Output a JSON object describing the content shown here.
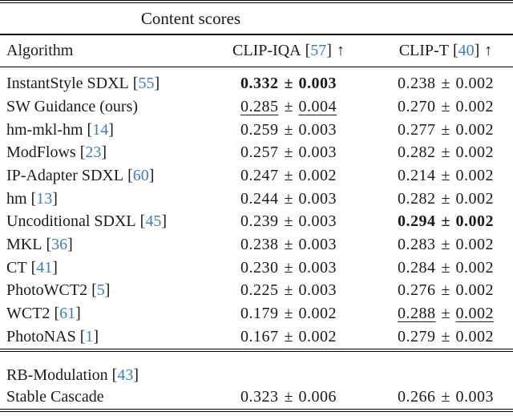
{
  "table": {
    "title": "Content scores",
    "header": {
      "algorithm": "Algorithm",
      "clip_iqa": {
        "name": "CLIP-IQA",
        "cite_l": "[",
        "cite": "57",
        "cite_r": "]",
        "arrow": "↑"
      },
      "clip_t": {
        "name": "CLIP-T",
        "cite_l": "[",
        "cite": "40",
        "cite_r": "]",
        "arrow": "↑"
      }
    },
    "rows": [
      {
        "name": "InstantStyle SDXL",
        "cite_l": "[",
        "cite": "55",
        "cite_r": "]",
        "iqa": {
          "v": "0.332",
          "pm": "±",
          "e": "0.003"
        },
        "iqa_style": "bold",
        "ct": {
          "v": "0.238",
          "pm": "±",
          "e": "0.002"
        },
        "ct_style": ""
      },
      {
        "name": "SW Guidance (ours)",
        "cite_l": "",
        "cite": "",
        "cite_r": "",
        "iqa": {
          "v": "0.285",
          "pm": "±",
          "e": "0.004"
        },
        "iqa_style": "underline",
        "ct": {
          "v": "0.270",
          "pm": "±",
          "e": "0.002"
        },
        "ct_style": ""
      },
      {
        "name": "hm-mkl-hm",
        "cite_l": "[",
        "cite": "14",
        "cite_r": "]",
        "iqa": {
          "v": "0.259",
          "pm": "±",
          "e": "0.003"
        },
        "iqa_style": "",
        "ct": {
          "v": "0.277",
          "pm": "±",
          "e": "0.002"
        },
        "ct_style": ""
      },
      {
        "name": "ModFlows",
        "cite_l": "[",
        "cite": "23",
        "cite_r": "]",
        "iqa": {
          "v": "0.257",
          "pm": "±",
          "e": "0.003"
        },
        "iqa_style": "",
        "ct": {
          "v": "0.282",
          "pm": "±",
          "e": "0.002"
        },
        "ct_style": ""
      },
      {
        "name": "IP-Adapter SDXL",
        "cite_l": "[",
        "cite": "60",
        "cite_r": "]",
        "iqa": {
          "v": "0.247",
          "pm": "±",
          "e": "0.002"
        },
        "iqa_style": "",
        "ct": {
          "v": "0.214",
          "pm": "±",
          "e": "0.002"
        },
        "ct_style": ""
      },
      {
        "name": "hm",
        "cite_l": "[",
        "cite": "13",
        "cite_r": "]",
        "iqa": {
          "v": "0.244",
          "pm": "±",
          "e": "0.003"
        },
        "iqa_style": "",
        "ct": {
          "v": "0.282",
          "pm": "±",
          "e": "0.002"
        },
        "ct_style": ""
      },
      {
        "name": "Uncoditional SDXL",
        "cite_l": "[",
        "cite": "45",
        "cite_r": "]",
        "iqa": {
          "v": "0.239",
          "pm": "±",
          "e": "0.003"
        },
        "iqa_style": "",
        "ct": {
          "v": "0.294",
          "pm": "±",
          "e": "0.002"
        },
        "ct_style": "bold"
      },
      {
        "name": "MKL",
        "cite_l": "[",
        "cite": "36",
        "cite_r": "]",
        "iqa": {
          "v": "0.238",
          "pm": "±",
          "e": "0.003"
        },
        "iqa_style": "",
        "ct": {
          "v": "0.283",
          "pm": "±",
          "e": "0.002"
        },
        "ct_style": ""
      },
      {
        "name": "CT",
        "cite_l": "[",
        "cite": "41",
        "cite_r": "]",
        "iqa": {
          "v": "0.230",
          "pm": "±",
          "e": "0.003"
        },
        "iqa_style": "",
        "ct": {
          "v": "0.284",
          "pm": "±",
          "e": "0.002"
        },
        "ct_style": ""
      },
      {
        "name": "PhotoWCT2",
        "cite_l": "[",
        "cite": "5",
        "cite_r": "]",
        "iqa": {
          "v": "0.225",
          "pm": "±",
          "e": "0.003"
        },
        "iqa_style": "",
        "ct": {
          "v": "0.276",
          "pm": "±",
          "e": "0.002"
        },
        "ct_style": ""
      },
      {
        "name": "WCT2",
        "cite_l": "[",
        "cite": "61",
        "cite_r": "]",
        "iqa": {
          "v": "0.179",
          "pm": "±",
          "e": "0.002"
        },
        "iqa_style": "",
        "ct": {
          "v": "0.288",
          "pm": "±",
          "e": "0.002"
        },
        "ct_style": "underline"
      },
      {
        "name": "PhotoNAS",
        "cite_l": "[",
        "cite": "1",
        "cite_r": "]",
        "iqa": {
          "v": "0.167",
          "pm": "±",
          "e": "0.002"
        },
        "iqa_style": "",
        "ct": {
          "v": "0.279",
          "pm": "±",
          "e": "0.002"
        },
        "ct_style": ""
      }
    ],
    "rows2": [
      {
        "name": "RB-Modulation",
        "cite_l": "[",
        "cite": "43",
        "cite_r": "]",
        "iqa": {
          "v": "",
          "pm": "",
          "e": ""
        },
        "iqa_style": "",
        "ct": {
          "v": "",
          "pm": "",
          "e": ""
        },
        "ct_style": ""
      },
      {
        "name": "Stable Cascade",
        "cite_l": "",
        "cite": "",
        "cite_r": "",
        "iqa": {
          "v": "0.323",
          "pm": "±",
          "e": "0.006"
        },
        "iqa_style": "",
        "ct": {
          "v": "0.266",
          "pm": "±",
          "e": "0.003"
        },
        "ct_style": ""
      }
    ]
  },
  "colors": {
    "citation": "#3e7dbf",
    "text": "#1a1a1a",
    "rule": "#000000"
  }
}
